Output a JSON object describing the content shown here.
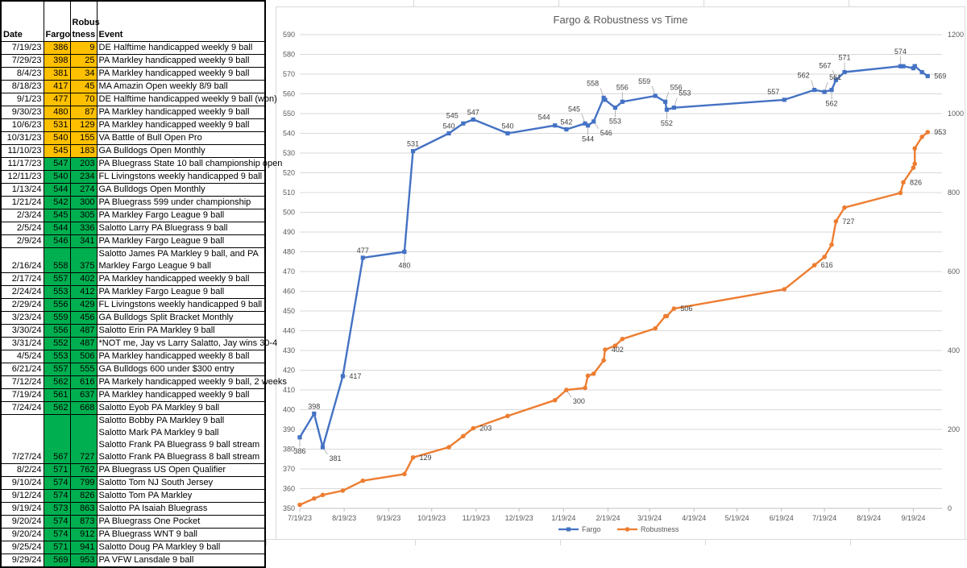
{
  "theme": {
    "gold": "#FFC000",
    "green": "#00B050",
    "blue": "#4472C4",
    "orange": "#ED7D31",
    "gridline": "#D9D9D9",
    "axis_text": "#595959",
    "data_label_text": "#404040"
  },
  "table": {
    "headers": [
      "Date",
      "Fargo",
      "Robus\ntness",
      "Event"
    ],
    "rows": [
      {
        "date": "7/19/23",
        "fargo": "386",
        "robustness": "9",
        "event": "DE Halftime handicapped weekly 9 ball",
        "fill": "gold"
      },
      {
        "date": "7/29/23",
        "fargo": "398",
        "robustness": "25",
        "event": "PA Markley handicapped weekly 9 ball",
        "fill": "gold"
      },
      {
        "date": "8/4/23",
        "fargo": "381",
        "robustness": "34",
        "event": "PA Markley handicapped weekly 9 ball",
        "fill": "gold"
      },
      {
        "date": "8/18/23",
        "fargo": "417",
        "robustness": "45",
        "event": "MA Amazin Open weekly 8/9 ball",
        "fill": "gold"
      },
      {
        "date": "9/1/23",
        "fargo": "477",
        "robustness": "70",
        "event": "DE Halftime handicapped weekly 9 ball (won)",
        "fill": "gold"
      },
      {
        "date": "9/30/23",
        "fargo": "480",
        "robustness": "87",
        "event": "PA Markley handicapped weekly 9 ball",
        "fill": "gold"
      },
      {
        "date": "10/6/23",
        "fargo": "531",
        "robustness": "129",
        "event": "PA Markley handicapped weekly 9 ball",
        "fill": "gold"
      },
      {
        "date": "10/31/23",
        "fargo": "540",
        "robustness": "155",
        "event": "VA Battle of Bull Open Pro",
        "fill": "gold"
      },
      {
        "date": "11/10/23",
        "fargo": "545",
        "robustness": "183",
        "event": "GA Bulldogs Open Monthly",
        "fill": "gold"
      },
      {
        "date": "11/17/23",
        "fargo": "547",
        "robustness": "203",
        "event": "PA Bluegrass State 10 ball championship open",
        "fill": "green"
      },
      {
        "date": "12/11/23",
        "fargo": "540",
        "robustness": "234",
        "event": "FL Livingstons weekly handicapped 9 ball",
        "fill": "green"
      },
      {
        "date": "1/13/24",
        "fargo": "544",
        "robustness": "274",
        "event": "GA Bulldogs Open Monthly",
        "fill": "green"
      },
      {
        "date": "1/21/24",
        "fargo": "542",
        "robustness": "300",
        "event": "PA Bluegrass 599 under championship",
        "fill": "green"
      },
      {
        "date": "2/3/24",
        "fargo": "545",
        "robustness": "305",
        "event": "PA Markley Fargo League 9 ball",
        "fill": "green"
      },
      {
        "date": "2/5/24",
        "fargo": "544",
        "robustness": "336",
        "event": "Salotto Larry PA Bluegrass 9 ball",
        "fill": "green"
      },
      {
        "date": "2/9/24",
        "fargo": "546",
        "robustness": "341",
        "event": "PA Markley Fargo League 9 ball",
        "fill": "green"
      },
      {
        "date": "2/16/24",
        "fargo": "558",
        "robustness": "375",
        "event": "Salotto James PA Markley 9 ball, and PA Markley Fargo League 9 ball",
        "fill": "green",
        "wrap": true
      },
      {
        "date": "2/17/24",
        "fargo": "557",
        "robustness": "402",
        "event": "PA Markley handicapped weekly 9 ball",
        "fill": "green"
      },
      {
        "date": "2/24/24",
        "fargo": "553",
        "robustness": "412",
        "event": "PA Markley Fargo League 9 ball",
        "fill": "green"
      },
      {
        "date": "2/29/24",
        "fargo": "556",
        "robustness": "429",
        "event": "FL Livingstons weekly handicapped 9 ball",
        "fill": "green"
      },
      {
        "date": "3/23/24",
        "fargo": "559",
        "robustness": "456",
        "event": "GA Bulldogs Split Bracket Monthly",
        "fill": "green"
      },
      {
        "date": "3/30/24",
        "fargo": "556",
        "robustness": "487",
        "event": "Salotto Erin PA Markley 9 ball",
        "fill": "green"
      },
      {
        "date": "3/31/24",
        "fargo": "552",
        "robustness": "487",
        "event": "*NOT me, Jay vs Larry Salatto, Jay wins 30-4",
        "fill": "green"
      },
      {
        "date": "4/5/24",
        "fargo": "553",
        "robustness": "506",
        "event": "PA Markley handicapped weekly 8 ball",
        "fill": "green"
      },
      {
        "date": "6/21/24",
        "fargo": "557",
        "robustness": "555",
        "event": "GA Bulldogs 600 under $300 entry",
        "fill": "green"
      },
      {
        "date": "7/12/24",
        "fargo": "562",
        "robustness": "616",
        "event": "PA Markely handicapped weekly 9 ball, 2 weeks",
        "fill": "green"
      },
      {
        "date": "7/19/24",
        "fargo": "561",
        "robustness": "637",
        "event": "PA Markley handicapped weekly 9 ball",
        "fill": "green"
      },
      {
        "date": "7/24/24",
        "fargo": "562",
        "robustness": "668",
        "event": "Salotto Eyob PA Markley 9 ball",
        "fill": "green"
      },
      {
        "date": "7/27/24",
        "fargo": "567",
        "robustness": "727",
        "event": "Salotto Bobby PA Markley 9 ball\nSalotto Mark PA Markley 9 ball\nSalotto Frank PA Bluegrass 9 ball stream\nSalotto Frank PA Bluegrass 8 ball stream",
        "fill": "green",
        "wrap": true
      },
      {
        "date": "8/2/24",
        "fargo": "571",
        "robustness": "762",
        "event": "PA Bluegrass US Open Qualifier",
        "fill": "green"
      },
      {
        "date": "9/10/24",
        "fargo": "574",
        "robustness": "799",
        "event": "Salotto Tom NJ South Jersey",
        "fill": "green"
      },
      {
        "date": "9/12/24",
        "fargo": "574",
        "robustness": "826",
        "event": "Salotto Tom PA Markley",
        "fill": "green"
      },
      {
        "date": "9/19/24",
        "fargo": "573",
        "robustness": "863",
        "event": "Salotto PA Isaiah Bluegrass",
        "fill": "green"
      },
      {
        "date": "9/20/24",
        "fargo": "574",
        "robustness": "873",
        "event": "PA Bluegrass One Pocket",
        "fill": "green"
      },
      {
        "date": "9/20/24",
        "fargo": "574",
        "robustness": "912",
        "event": "PA Bluegrass WNT 9 ball",
        "fill": "green"
      },
      {
        "date": "9/25/24",
        "fargo": "571",
        "robustness": "941",
        "event": "Salotto Doug PA Markley 9 ball",
        "fill": "green"
      },
      {
        "date": "9/29/24",
        "fargo": "569",
        "robustness": "953",
        "event": "PA VFW Lansdale 9 ball",
        "fill": "green"
      }
    ]
  },
  "chart_data": {
    "type": "line",
    "title": "Fargo & Robustness vs Time",
    "grid": true,
    "legend_position": "bottom",
    "x": [
      "7/19/23",
      "7/29/23",
      "8/4/23",
      "8/18/23",
      "9/1/23",
      "9/30/23",
      "10/6/23",
      "10/31/23",
      "11/10/23",
      "11/17/23",
      "12/11/23",
      "1/13/24",
      "1/21/24",
      "2/3/24",
      "2/5/24",
      "2/9/24",
      "2/16/24",
      "2/17/24",
      "2/24/24",
      "2/29/24",
      "3/23/24",
      "3/30/24",
      "3/31/24",
      "4/5/24",
      "6/21/24",
      "7/12/24",
      "7/19/24",
      "7/24/24",
      "7/27/24",
      "8/2/24",
      "9/10/24",
      "9/12/24",
      "9/19/24",
      "9/20/24",
      "9/20/24",
      "9/25/24",
      "9/29/24"
    ],
    "x_axis": {
      "min": "7/19/23",
      "max": "10/9/24",
      "tick_labels": [
        "7/19/23",
        "8/19/23",
        "9/19/23",
        "10/19/23",
        "11/19/23",
        "12/19/23",
        "1/19/24",
        "2/19/24",
        "3/19/24",
        "4/19/24",
        "5/19/24",
        "6/19/24",
        "7/19/24",
        "8/19/24",
        "9/19/24"
      ]
    },
    "left_axis": {
      "min": 350,
      "max": 590,
      "step": 10
    },
    "right_axis": {
      "min": 0,
      "max": 1200,
      "step": 200
    },
    "series": [
      {
        "name": "Fargo",
        "axis": "left",
        "color": "#4472C4",
        "marker": "square",
        "values": [
          386,
          398,
          381,
          417,
          477,
          480,
          531,
          540,
          545,
          547,
          540,
          544,
          542,
          545,
          544,
          546,
          558,
          557,
          553,
          556,
          559,
          556,
          552,
          553,
          557,
          562,
          561,
          562,
          567,
          571,
          574,
          574,
          573,
          574,
          574,
          571,
          569
        ],
        "point_labels": [
          "below*",
          "above",
          "below-right*",
          "right*",
          "above",
          "below*",
          "above",
          "above",
          "above-left",
          "above",
          "above",
          "above-left",
          "above",
          "above-left*",
          "below*",
          "below-right*",
          "above-left*",
          null,
          "below*",
          "above*",
          "above-left*",
          "above-right*",
          "below*",
          "above-right*",
          "above-left",
          "above-left*",
          "above-right*",
          "below*",
          "above-left*",
          "above*",
          "above*",
          null,
          null,
          null,
          null,
          null,
          "right"
        ]
      },
      {
        "name": "Robustness",
        "axis": "right",
        "color": "#ED7D31",
        "marker": "circle",
        "values": [
          9,
          25,
          34,
          45,
          70,
          87,
          129,
          155,
          183,
          203,
          234,
          274,
          300,
          305,
          336,
          341,
          375,
          402,
          412,
          429,
          456,
          487,
          487,
          506,
          555,
          616,
          637,
          668,
          727,
          762,
          799,
          826,
          863,
          873,
          912,
          941,
          953
        ],
        "point_labels": [
          null,
          null,
          null,
          null,
          null,
          null,
          "right",
          null,
          null,
          "right",
          null,
          null,
          "below-right*",
          null,
          null,
          null,
          null,
          "right",
          null,
          null,
          null,
          null,
          null,
          "right",
          null,
          "right",
          null,
          null,
          "right",
          null,
          null,
          "right",
          null,
          null,
          null,
          null,
          "right"
        ]
      }
    ]
  }
}
